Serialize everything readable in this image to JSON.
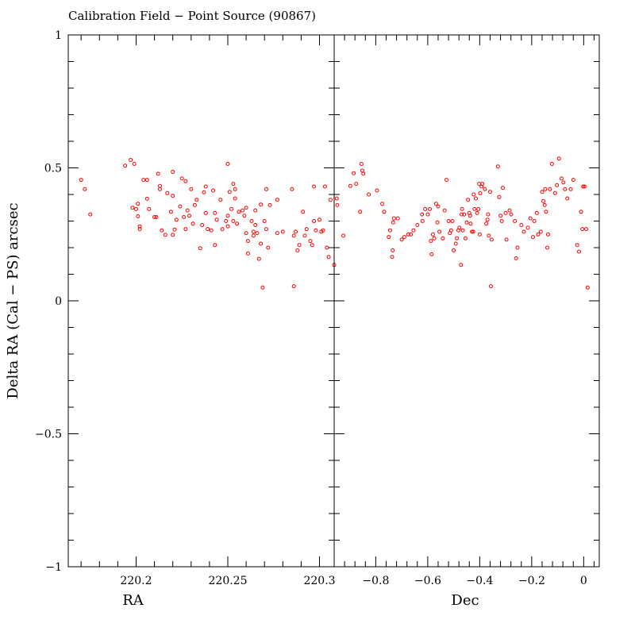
{
  "chart_data": {
    "type": "scatter",
    "title": "Calibration Field − Point Source (90867)",
    "ylabel": "Delta RA (Cal − PS) arcsec",
    "ylim": [
      -1,
      1
    ],
    "yticks": [
      {
        "v": 1,
        "label": "1"
      },
      {
        "v": 0.5,
        "label": "0.5"
      },
      {
        "v": 0,
        "label": "0"
      },
      {
        "v": -0.5,
        "label": "−0.5"
      },
      {
        "v": -1,
        "label": "−1"
      }
    ],
    "panels": [
      {
        "name": "ra",
        "xlabel": "RA",
        "xlim": [
          220.163,
          220.308
        ],
        "xticks": [
          {
            "v": 220.2,
            "label": "220.2"
          },
          {
            "v": 220.25,
            "label": "220.25"
          },
          {
            "v": 220.3,
            "label": "220.3"
          }
        ],
        "points": [
          [
            220.17,
            0.455
          ],
          [
            220.172,
            0.42
          ],
          [
            220.175,
            0.325
          ],
          [
            220.194,
            0.508
          ],
          [
            220.197,
            0.53
          ],
          [
            220.198,
            0.35
          ],
          [
            220.199,
            0.515
          ],
          [
            220.2,
            0.345
          ],
          [
            220.201,
            0.365
          ],
          [
            220.201,
            0.318
          ],
          [
            220.202,
            0.28
          ],
          [
            220.202,
            0.27
          ],
          [
            220.204,
            0.455
          ],
          [
            220.206,
            0.455
          ],
          [
            220.206,
            0.384
          ],
          [
            220.207,
            0.345
          ],
          [
            220.21,
            0.315
          ],
          [
            220.211,
            0.315
          ],
          [
            220.212,
            0.478
          ],
          [
            220.213,
            0.432
          ],
          [
            220.213,
            0.42
          ],
          [
            220.214,
            0.265
          ],
          [
            220.216,
            0.248
          ],
          [
            220.217,
            0.405
          ],
          [
            220.219,
            0.335
          ],
          [
            220.22,
            0.485
          ],
          [
            220.22,
            0.395
          ],
          [
            220.22,
            0.248
          ],
          [
            220.221,
            0.268
          ],
          [
            220.222,
            0.305
          ],
          [
            220.224,
            0.355
          ],
          [
            220.225,
            0.46
          ],
          [
            220.226,
            0.315
          ],
          [
            220.227,
            0.45
          ],
          [
            220.227,
            0.27
          ],
          [
            220.228,
            0.34
          ],
          [
            220.229,
            0.32
          ],
          [
            220.23,
            0.42
          ],
          [
            220.231,
            0.29
          ],
          [
            220.232,
            0.36
          ],
          [
            220.233,
            0.38
          ],
          [
            220.235,
            0.198
          ],
          [
            220.236,
            0.285
          ],
          [
            220.237,
            0.408
          ],
          [
            220.238,
            0.43
          ],
          [
            220.238,
            0.33
          ],
          [
            220.239,
            0.27
          ],
          [
            220.241,
            0.265
          ],
          [
            220.242,
            0.415
          ],
          [
            220.243,
            0.21
          ],
          [
            220.243,
            0.33
          ],
          [
            220.244,
            0.305
          ],
          [
            220.246,
            0.38
          ],
          [
            220.247,
            0.27
          ],
          [
            220.249,
            0.3
          ],
          [
            220.25,
            0.515
          ],
          [
            220.25,
            0.32
          ],
          [
            220.25,
            0.28
          ],
          [
            220.251,
            0.41
          ],
          [
            220.252,
            0.345
          ],
          [
            220.253,
            0.44
          ],
          [
            220.253,
            0.3
          ],
          [
            220.254,
            0.42
          ],
          [
            220.254,
            0.385
          ],
          [
            220.255,
            0.29
          ],
          [
            220.256,
            0.335
          ],
          [
            220.258,
            0.34
          ],
          [
            220.259,
            0.32
          ],
          [
            220.26,
            0.35
          ],
          [
            220.26,
            0.255
          ],
          [
            220.261,
            0.225
          ],
          [
            220.261,
            0.178
          ],
          [
            220.263,
            0.3
          ],
          [
            220.264,
            0.26
          ],
          [
            220.264,
            0.245
          ],
          [
            220.265,
            0.34
          ],
          [
            220.265,
            0.285
          ],
          [
            220.266,
            0.255
          ],
          [
            220.267,
            0.158
          ],
          [
            220.268,
            0.215
          ],
          [
            220.268,
            0.362
          ],
          [
            220.269,
            0.05
          ],
          [
            220.27,
            0.3
          ],
          [
            220.271,
            0.27
          ],
          [
            220.271,
            0.42
          ],
          [
            220.272,
            0.2
          ],
          [
            220.273,
            0.36
          ],
          [
            220.277,
            0.38
          ],
          [
            220.277,
            0.255
          ],
          [
            220.28,
            0.26
          ],
          [
            220.285,
            0.42
          ],
          [
            220.286,
            0.245
          ],
          [
            220.286,
            0.055
          ],
          [
            220.287,
            0.26
          ],
          [
            220.288,
            0.19
          ],
          [
            220.289,
            0.21
          ],
          [
            220.291,
            0.335
          ],
          [
            220.292,
            0.245
          ],
          [
            220.293,
            0.27
          ],
          [
            220.295,
            0.225
          ],
          [
            220.296,
            0.21
          ],
          [
            220.297,
            0.43
          ],
          [
            220.297,
            0.3
          ],
          [
            220.298,
            0.265
          ],
          [
            220.3,
            0.305
          ],
          [
            220.301,
            0.26
          ],
          [
            220.302,
            0.265
          ],
          [
            220.303,
            0.43
          ],
          [
            220.304,
            0.2
          ],
          [
            220.305,
            0.165
          ],
          [
            220.306,
            0.38
          ],
          [
            220.308,
            0.135
          ]
        ]
      },
      {
        "name": "dec",
        "xlabel": "Dec",
        "xlim": [
          -0.96,
          0.06
        ],
        "xticks": [
          {
            "v": -0.8,
            "label": "−0.8"
          },
          {
            "v": -0.6,
            "label": "−0.6"
          },
          {
            "v": -0.4,
            "label": "−0.4"
          },
          {
            "v": -0.2,
            "label": "−0.2"
          },
          {
            "v": 0,
            "label": "0"
          }
        ],
        "points": [
          [
            -0.95,
            0.385
          ],
          [
            -0.948,
            0.36
          ],
          [
            -0.925,
            0.245
          ],
          [
            -0.898,
            0.432
          ],
          [
            -0.885,
            0.48
          ],
          [
            -0.875,
            0.44
          ],
          [
            -0.86,
            0.335
          ],
          [
            -0.855,
            0.515
          ],
          [
            -0.852,
            0.49
          ],
          [
            -0.848,
            0.478
          ],
          [
            -0.827,
            0.4
          ],
          [
            -0.795,
            0.415
          ],
          [
            -0.775,
            0.365
          ],
          [
            -0.768,
            0.335
          ],
          [
            -0.75,
            0.24
          ],
          [
            -0.745,
            0.265
          ],
          [
            -0.737,
            0.165
          ],
          [
            -0.735,
            0.19
          ],
          [
            -0.733,
            0.295
          ],
          [
            -0.73,
            0.31
          ],
          [
            -0.715,
            0.31
          ],
          [
            -0.7,
            0.23
          ],
          [
            -0.69,
            0.24
          ],
          [
            -0.675,
            0.25
          ],
          [
            -0.665,
            0.25
          ],
          [
            -0.655,
            0.265
          ],
          [
            -0.64,
            0.285
          ],
          [
            -0.622,
            0.325
          ],
          [
            -0.62,
            0.3
          ],
          [
            -0.61,
            0.345
          ],
          [
            -0.6,
            0.325
          ],
          [
            -0.592,
            0.345
          ],
          [
            -0.588,
            0.225
          ],
          [
            -0.585,
            0.175
          ],
          [
            -0.58,
            0.25
          ],
          [
            -0.575,
            0.235
          ],
          [
            -0.568,
            0.365
          ],
          [
            -0.563,
            0.295
          ],
          [
            -0.56,
            0.355
          ],
          [
            -0.555,
            0.26
          ],
          [
            -0.542,
            0.235
          ],
          [
            -0.535,
            0.34
          ],
          [
            -0.528,
            0.455
          ],
          [
            -0.52,
            0.3
          ],
          [
            -0.515,
            0.255
          ],
          [
            -0.51,
            0.265
          ],
          [
            -0.505,
            0.3
          ],
          [
            -0.5,
            0.19
          ],
          [
            -0.492,
            0.215
          ],
          [
            -0.488,
            0.235
          ],
          [
            -0.482,
            0.265
          ],
          [
            -0.478,
            0.275
          ],
          [
            -0.472,
            0.135
          ],
          [
            -0.47,
            0.325
          ],
          [
            -0.468,
            0.345
          ],
          [
            -0.465,
            0.265
          ],
          [
            -0.46,
            0.325
          ],
          [
            -0.455,
            0.235
          ],
          [
            -0.45,
            0.295
          ],
          [
            -0.445,
            0.38
          ],
          [
            -0.44,
            0.33
          ],
          [
            -0.437,
            0.32
          ],
          [
            -0.435,
            0.29
          ],
          [
            -0.43,
            0.26
          ],
          [
            -0.425,
            0.26
          ],
          [
            -0.423,
            0.4
          ],
          [
            -0.42,
            0.345
          ],
          [
            -0.415,
            0.385
          ],
          [
            -0.41,
            0.33
          ],
          [
            -0.405,
            0.345
          ],
          [
            -0.402,
            0.44
          ],
          [
            -0.4,
            0.25
          ],
          [
            -0.398,
            0.405
          ],
          [
            -0.393,
            0.43
          ],
          [
            -0.39,
            0.44
          ],
          [
            -0.38,
            0.42
          ],
          [
            -0.375,
            0.29
          ],
          [
            -0.37,
            0.305
          ],
          [
            -0.368,
            0.325
          ],
          [
            -0.365,
            0.245
          ],
          [
            -0.36,
            0.41
          ],
          [
            -0.357,
            0.055
          ],
          [
            -0.354,
            0.23
          ],
          [
            -0.33,
            0.505
          ],
          [
            -0.325,
            0.39
          ],
          [
            -0.32,
            0.32
          ],
          [
            -0.315,
            0.3
          ],
          [
            -0.311,
            0.425
          ],
          [
            -0.3,
            0.33
          ],
          [
            -0.297,
            0.23
          ],
          [
            -0.285,
            0.34
          ],
          [
            -0.279,
            0.325
          ],
          [
            -0.265,
            0.3
          ],
          [
            -0.26,
            0.16
          ],
          [
            -0.255,
            0.2
          ],
          [
            -0.24,
            0.285
          ],
          [
            -0.23,
            0.26
          ],
          [
            -0.215,
            0.275
          ],
          [
            -0.205,
            0.31
          ],
          [
            -0.195,
            0.24
          ],
          [
            -0.19,
            0.3
          ],
          [
            -0.18,
            0.33
          ],
          [
            -0.175,
            0.25
          ],
          [
            -0.165,
            0.26
          ],
          [
            -0.16,
            0.41
          ],
          [
            -0.155,
            0.375
          ],
          [
            -0.15,
            0.36
          ],
          [
            -0.148,
            0.42
          ],
          [
            -0.145,
            0.335
          ],
          [
            -0.14,
            0.2
          ],
          [
            -0.137,
            0.25
          ],
          [
            -0.13,
            0.42
          ],
          [
            -0.122,
            0.515
          ],
          [
            -0.11,
            0.405
          ],
          [
            -0.103,
            0.435
          ],
          [
            -0.095,
            0.535
          ],
          [
            -0.085,
            0.46
          ],
          [
            -0.078,
            0.445
          ],
          [
            -0.072,
            0.42
          ],
          [
            -0.063,
            0.385
          ],
          [
            -0.05,
            0.42
          ],
          [
            -0.04,
            0.455
          ],
          [
            -0.025,
            0.21
          ],
          [
            -0.018,
            0.185
          ],
          [
            -0.01,
            0.335
          ],
          [
            -0.005,
            0.27
          ],
          [
            -0.002,
            0.43
          ],
          [
            0.003,
            0.43
          ],
          [
            0.01,
            0.27
          ],
          [
            0.015,
            0.05
          ]
        ]
      }
    ]
  }
}
